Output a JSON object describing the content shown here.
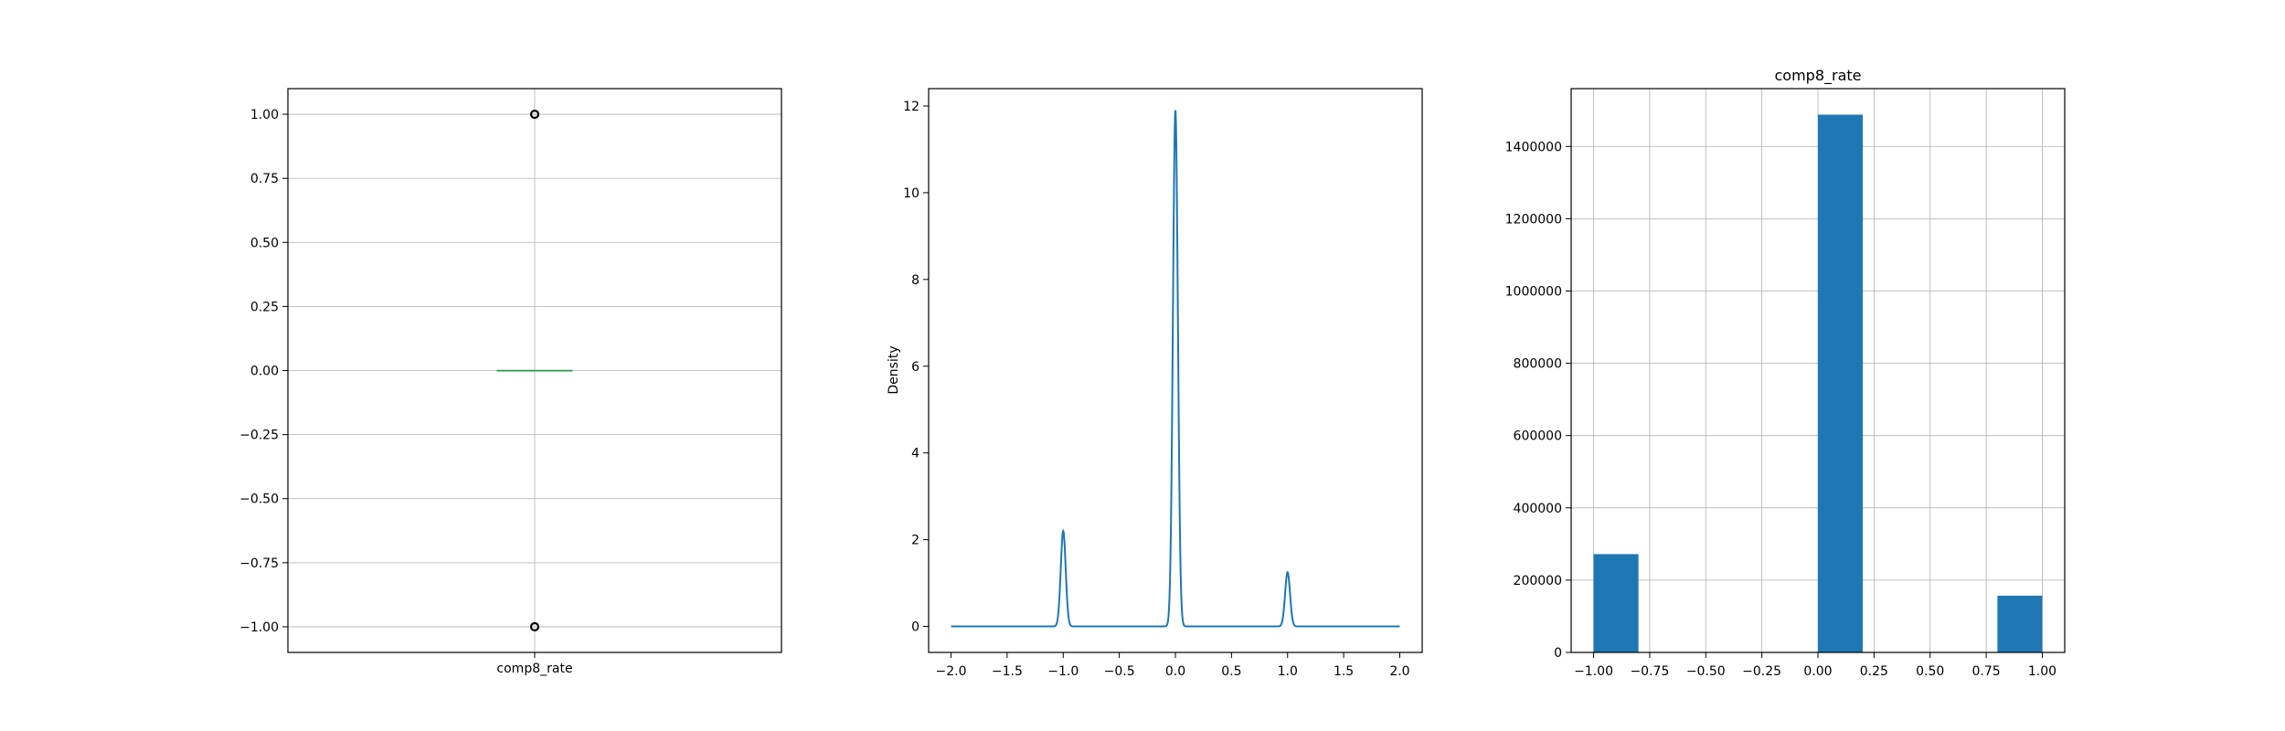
{
  "chart_data": [
    {
      "type": "box",
      "title": "",
      "xlabel": "",
      "ylabel": "",
      "category": "comp8_rate",
      "ylim": [
        -1.1,
        1.1
      ],
      "yticks": [
        1.0,
        0.75,
        0.5,
        0.25,
        0.0,
        -0.25,
        -0.5,
        -0.75,
        -1.0
      ],
      "ytick_labels": [
        "1.00",
        "0.75",
        "0.50",
        "0.25",
        "0.00",
        "−0.25",
        "−0.50",
        "−0.75",
        "−1.00"
      ],
      "median": 0.0,
      "q1": 0.0,
      "q3": 0.0,
      "outliers": [
        1.0,
        -1.0
      ],
      "grid": true,
      "median_color": "#2ca02c",
      "outlier_color": "#000000"
    },
    {
      "type": "line",
      "title": "",
      "xlabel": "",
      "ylabel": "Density",
      "xlim": [
        -2.2,
        2.2
      ],
      "ylim": [
        -0.6,
        12.4
      ],
      "xticks": [
        -2.0,
        -1.5,
        -1.0,
        -0.5,
        0.0,
        0.5,
        1.0,
        1.5,
        2.0
      ],
      "xtick_labels": [
        "−2.0",
        "−1.5",
        "−1.0",
        "−0.5",
        "0.0",
        "0.5",
        "1.0",
        "1.5",
        "2.0"
      ],
      "yticks": [
        0,
        2,
        4,
        6,
        8,
        10,
        12
      ],
      "ytick_labels": [
        "0",
        "2",
        "4",
        "6",
        "8",
        "10",
        "12"
      ],
      "peaks": [
        {
          "x": -1.0,
          "y": 2.2
        },
        {
          "x": 0.0,
          "y": 11.9
        },
        {
          "x": 1.0,
          "y": 1.25
        }
      ],
      "grid": false,
      "color": "#1f77b4"
    },
    {
      "type": "bar",
      "title": "comp8_rate",
      "xlabel": "",
      "ylabel": "",
      "xlim": [
        -1.1,
        1.1
      ],
      "ylim": [
        0,
        1560000
      ],
      "xticks": [
        -1.0,
        -0.75,
        -0.5,
        -0.25,
        0.0,
        0.25,
        0.5,
        0.75,
        1.0
      ],
      "xtick_labels": [
        "−1.00",
        "−0.75",
        "−0.50",
        "−0.25",
        "0.00",
        "0.25",
        "0.50",
        "0.75",
        "1.00"
      ],
      "yticks": [
        0,
        200000,
        400000,
        600000,
        800000,
        1000000,
        1200000,
        1400000
      ],
      "ytick_labels": [
        "0",
        "200000",
        "400000",
        "600000",
        "800000",
        "1000000",
        "1200000",
        "1400000"
      ],
      "bins": [
        {
          "start": -1.0,
          "end": -0.8,
          "count": 272000
        },
        {
          "start": 0.0,
          "end": 0.2,
          "count": 1488000
        },
        {
          "start": 0.8,
          "end": 1.0,
          "count": 157000
        }
      ],
      "grid": true,
      "color": "#1f77b4"
    }
  ]
}
